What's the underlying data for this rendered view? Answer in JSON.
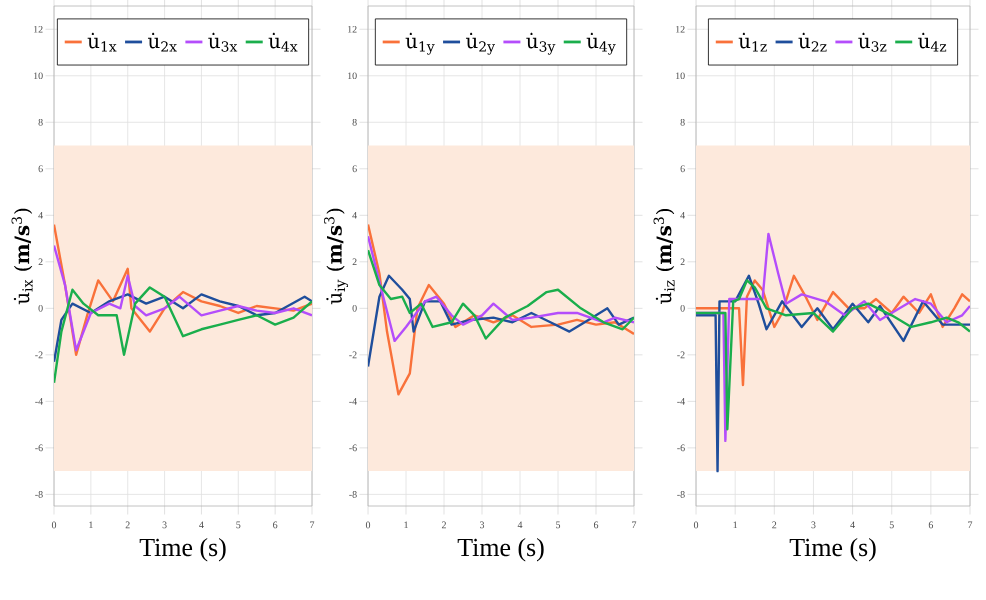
{
  "chart_data": [
    {
      "type": "line",
      "xlabel": "Time (s)",
      "ylabel": "u̇$_{ix}$ (**m/s**$^{3}$)",
      "xlim": [
        0,
        7
      ],
      "ylim": [
        -8.5,
        13
      ],
      "xticks": [
        0,
        1,
        2,
        3,
        4,
        5,
        6,
        7
      ],
      "yticks": [
        -8,
        -6,
        -4,
        -2,
        0,
        2,
        4,
        6,
        8,
        10,
        12
      ],
      "grid": true,
      "legend": "top",
      "bands": [
        {
          "axis": "y",
          "from": -7,
          "to": 7,
          "color": "#fde9dc"
        }
      ],
      "series": [
        {
          "name": "u̇$_{1x}$",
          "color": "#f9713a",
          "x": [
            0,
            0.3,
            0.6,
            0.9,
            1.2,
            1.6,
            2.0,
            2.1,
            2.6,
            3.0,
            3.5,
            4,
            4.5,
            5,
            5.5,
            6,
            6.5,
            7
          ],
          "values": [
            3.6,
            1.0,
            -2,
            -0.3,
            1.2,
            0.3,
            1.7,
            0,
            -1,
            0,
            0.7,
            0.3,
            0.1,
            -0.2,
            0.1,
            0,
            -0.1,
            0.2
          ]
        },
        {
          "name": "u̇$_{2x}$",
          "color": "#1f4e9c",
          "x": [
            0,
            0.2,
            0.5,
            1,
            1.5,
            2,
            2.5,
            3,
            3.5,
            4,
            4.5,
            5,
            5.5,
            6,
            6.8,
            7
          ],
          "values": [
            -2.3,
            -0.5,
            0.2,
            -0.2,
            0.3,
            0.6,
            0.2,
            0.5,
            0,
            0.6,
            0.3,
            0.1,
            -0.3,
            -0.2,
            0.5,
            0.3
          ]
        },
        {
          "name": "u̇$_{3x}$",
          "color": "#b44dfb",
          "x": [
            0,
            0.3,
            0.6,
            1,
            1.5,
            1.8,
            2,
            2.2,
            2.5,
            3,
            3.4,
            4,
            4.5,
            5,
            5.5,
            6,
            6.5,
            7
          ],
          "values": [
            2.7,
            1.0,
            -1.8,
            -0.2,
            0.2,
            0,
            1.4,
            0.1,
            -0.3,
            0,
            0.5,
            -0.3,
            -0.1,
            0.1,
            -0.1,
            -0.2,
            0,
            -0.3
          ]
        },
        {
          "name": "u̇$_{4x}$",
          "color": "#1aae4c",
          "x": [
            0,
            0.2,
            0.5,
            0.8,
            1.2,
            1.7,
            1.9,
            2.2,
            2.6,
            3,
            3.5,
            4,
            4.5,
            5,
            5.5,
            6,
            6.5,
            7
          ],
          "values": [
            -3.2,
            -1,
            0.8,
            0.2,
            -0.3,
            -0.3,
            -2,
            0.2,
            0.9,
            0.5,
            -1.2,
            -0.9,
            -0.7,
            -0.5,
            -0.3,
            -0.7,
            -0.4,
            0.3
          ]
        }
      ]
    },
    {
      "type": "line",
      "xlabel": "Time (s)",
      "ylabel": "u̇$_{iy}$ (**m/s**$^{3}$)",
      "xlim": [
        0,
        7
      ],
      "ylim": [
        -8.5,
        13
      ],
      "xticks": [
        0,
        1,
        2,
        3,
        4,
        5,
        6,
        7
      ],
      "yticks": [
        -8,
        -6,
        -4,
        -2,
        0,
        2,
        4,
        6,
        8,
        10,
        12
      ],
      "grid": true,
      "legend": "top",
      "bands": [
        {
          "axis": "y",
          "from": -7,
          "to": 7,
          "color": "#fde9dc"
        }
      ],
      "series": [
        {
          "name": "u̇$_{1y}$",
          "color": "#f9713a",
          "x": [
            0,
            0.3,
            0.5,
            0.8,
            1.1,
            1.3,
            1.6,
            2,
            2.3,
            2.8,
            3.3,
            3.8,
            4.3,
            5,
            5.5,
            6,
            6.5,
            7
          ],
          "values": [
            3.6,
            1.5,
            -1,
            -3.7,
            -2.8,
            0,
            1.0,
            0.2,
            -0.8,
            -0.3,
            -0.6,
            -0.3,
            -0.8,
            -0.7,
            -0.5,
            -0.7,
            -0.6,
            -1.1
          ]
        },
        {
          "name": "u̇$_{2y}$",
          "color": "#1f4e9c",
          "x": [
            0,
            0.3,
            0.55,
            0.9,
            1.1,
            1.2,
            1.5,
            1.9,
            2.2,
            2.7,
            3.3,
            3.8,
            4.3,
            4.8,
            5.3,
            5.8,
            6.3,
            6.6,
            7
          ],
          "values": [
            -2.5,
            0.5,
            1.4,
            0.8,
            0.4,
            -1,
            0.3,
            0.3,
            -0.7,
            -0.5,
            -0.4,
            -0.6,
            -0.2,
            -0.6,
            -1,
            -0.5,
            0,
            -0.7,
            -0.4
          ]
        },
        {
          "name": "u̇$_{3y}$",
          "color": "#b44dfb",
          "x": [
            0,
            0.4,
            0.7,
            1.0,
            1.5,
            1.8,
            2.2,
            2.5,
            3,
            3.3,
            3.8,
            4.3,
            5,
            5.5,
            6.2,
            6.5,
            7
          ],
          "values": [
            3.1,
            0.5,
            -1.4,
            -0.8,
            0.3,
            0.5,
            -0.3,
            -0.7,
            -0.3,
            0.2,
            -0.5,
            -0.4,
            -0.2,
            -0.2,
            -0.6,
            -0.4,
            -0.6
          ]
        },
        {
          "name": "u̇$_{4y}$",
          "color": "#1aae4c",
          "x": [
            0,
            0.3,
            0.6,
            0.9,
            1.1,
            1.4,
            1.7,
            2.2,
            2.5,
            2.8,
            3.1,
            3.6,
            4.2,
            4.7,
            5,
            5.6,
            6.2,
            6.7,
            7
          ],
          "values": [
            2.5,
            1.0,
            0.4,
            0.5,
            -0.2,
            0.2,
            -0.8,
            -0.6,
            0.2,
            -0.3,
            -1.3,
            -0.4,
            0.1,
            0.7,
            0.8,
            0,
            -0.6,
            -0.9,
            -0.4
          ]
        }
      ]
    },
    {
      "type": "line",
      "xlabel": "Time (s)",
      "ylabel": "u̇$_{iz}$ (**m/s**$^{3}$)",
      "xlim": [
        0,
        7
      ],
      "ylim": [
        -8.5,
        13
      ],
      "xticks": [
        0,
        1,
        2,
        3,
        4,
        5,
        6,
        7
      ],
      "yticks": [
        -8,
        -6,
        -4,
        -2,
        0,
        2,
        4,
        6,
        8,
        10,
        12
      ],
      "grid": true,
      "legend": "top",
      "bands": [
        {
          "axis": "y",
          "from": -7,
          "to": 7,
          "color": "#fde9dc"
        }
      ],
      "series": [
        {
          "name": "u̇$_{1z}$",
          "color": "#f9713a",
          "x": [
            0,
            1.1,
            1.2,
            1.3,
            1.5,
            1.7,
            2.0,
            2.2,
            2.5,
            2.8,
            3.1,
            3.5,
            3.9,
            4.3,
            4.6,
            5,
            5.3,
            5.7,
            6.0,
            6.3,
            6.6,
            6.8,
            7
          ],
          "values": [
            0,
            0,
            -3.3,
            0.5,
            1.2,
            0.8,
            -0.8,
            -0.2,
            1.4,
            0.5,
            -0.5,
            0.7,
            0,
            0,
            0.4,
            -0.2,
            0.5,
            -0.2,
            0.6,
            -0.8,
            0,
            0.6,
            0.3
          ]
        },
        {
          "name": "u̇$_{2z}$",
          "color": "#1f4e9c",
          "x": [
            0,
            0.5,
            0.55,
            0.6,
            1.0,
            1.35,
            1.6,
            1.8,
            2.2,
            2.7,
            3.1,
            3.5,
            4,
            4.4,
            4.7,
            5.3,
            5.8,
            6.3,
            7
          ],
          "values": [
            -0.3,
            -0.3,
            -7,
            0.3,
            0.3,
            1.4,
            0.2,
            -0.9,
            0.3,
            -0.8,
            0,
            -0.9,
            0.2,
            -0.6,
            0.1,
            -1.4,
            0.3,
            -0.7,
            -0.7
          ]
        },
        {
          "name": "u̇$_{3z}$",
          "color": "#b44dfb",
          "x": [
            0,
            0.7,
            0.75,
            0.85,
            1.7,
            1.85,
            2.1,
            2.3,
            2.7,
            3.3,
            3.8,
            4.3,
            4.7,
            5.2,
            5.6,
            6,
            6.4,
            6.8,
            7
          ],
          "values": [
            -0.2,
            -0.2,
            -5.7,
            0.4,
            0.4,
            3.2,
            1.5,
            0.2,
            0.6,
            0.3,
            -0.3,
            0.3,
            -0.5,
            0,
            0.4,
            0.2,
            -0.6,
            -0.3,
            0.1
          ]
        },
        {
          "name": "u̇$_{4z}$",
          "color": "#1aae4c",
          "x": [
            0,
            0.75,
            0.8,
            0.95,
            1.1,
            1.3,
            1.5,
            1.8,
            2.3,
            3,
            3.5,
            4,
            4.4,
            5,
            5.5,
            6,
            6.4,
            6.7,
            7
          ],
          "values": [
            -0.2,
            -0.2,
            -5.2,
            0.3,
            0.4,
            1.2,
            0.9,
            0,
            -0.3,
            -0.2,
            -1.0,
            0,
            0.2,
            -0.3,
            -0.8,
            -0.6,
            -0.4,
            -0.6,
            -1
          ]
        }
      ]
    }
  ]
}
